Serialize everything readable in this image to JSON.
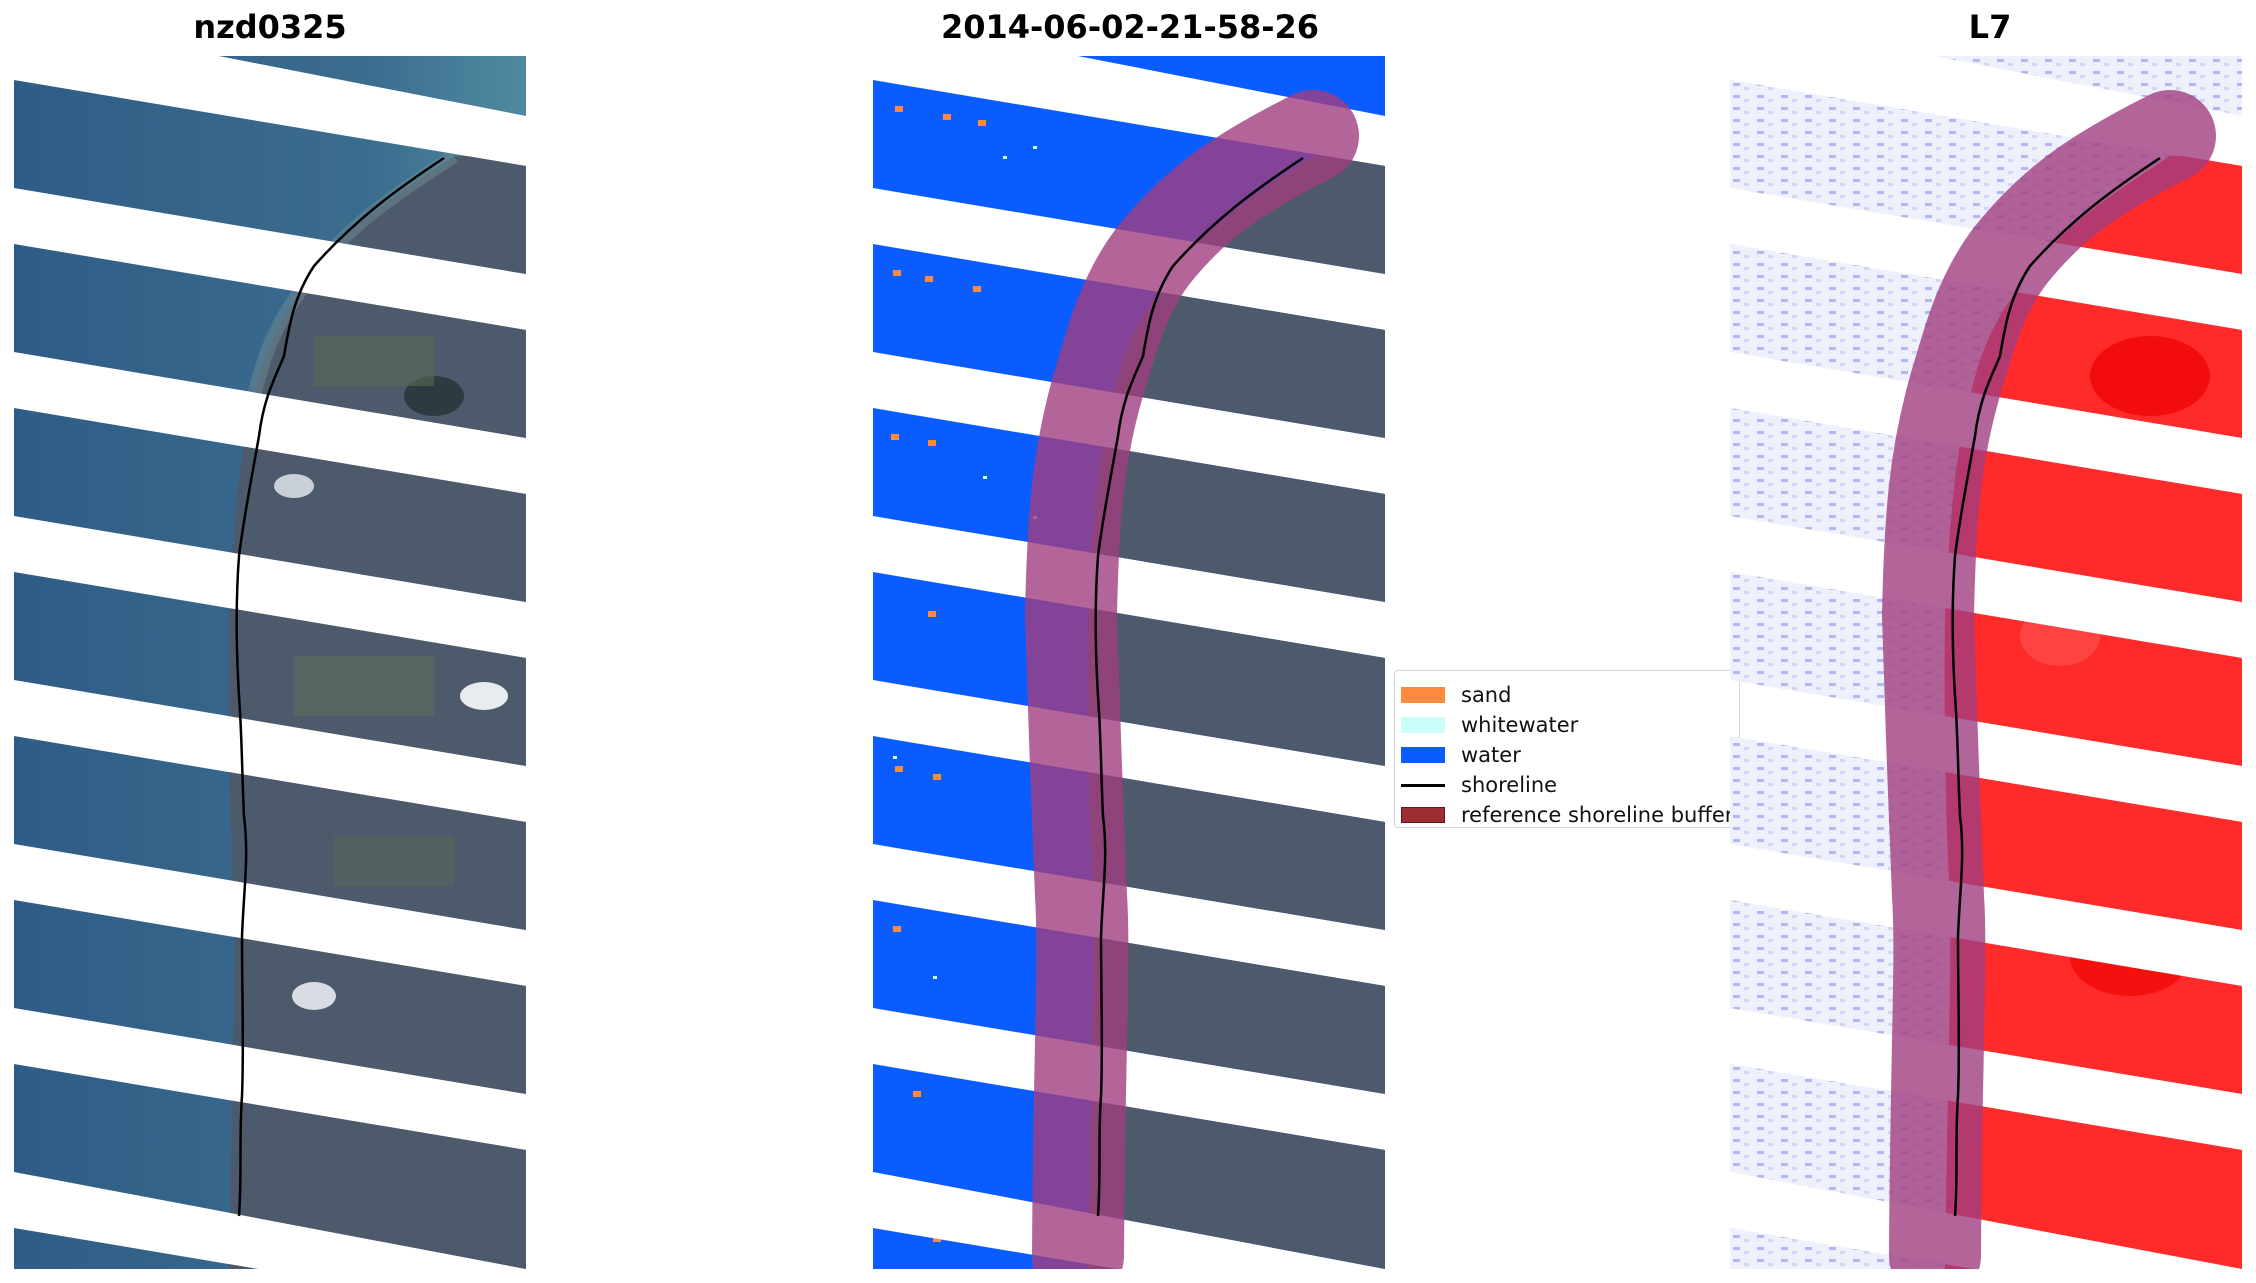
{
  "panels": [
    {
      "title": "nzd0325"
    },
    {
      "title": "2014-06-02-21-58-26"
    },
    {
      "title": "L7"
    }
  ],
  "legend": {
    "items": [
      {
        "label": "sand",
        "color": "#ff8a3d",
        "kind": "patch"
      },
      {
        "label": "whitewater",
        "color": "#ccfffa",
        "kind": "patch"
      },
      {
        "label": "water",
        "color": "#0a5cff",
        "kind": "patch"
      },
      {
        "label": "shoreline",
        "color": "#000000",
        "kind": "line"
      },
      {
        "label": "reference shoreline buffer",
        "color": "#9b2d33",
        "kind": "patch"
      }
    ]
  },
  "colors": {
    "sea": "#35608a",
    "land": "#4b5868",
    "water_class": "#0a5cff",
    "buffer": "#a03d80",
    "index_positive": "#ff1a1a",
    "index_negative": "#e8ecfa"
  }
}
